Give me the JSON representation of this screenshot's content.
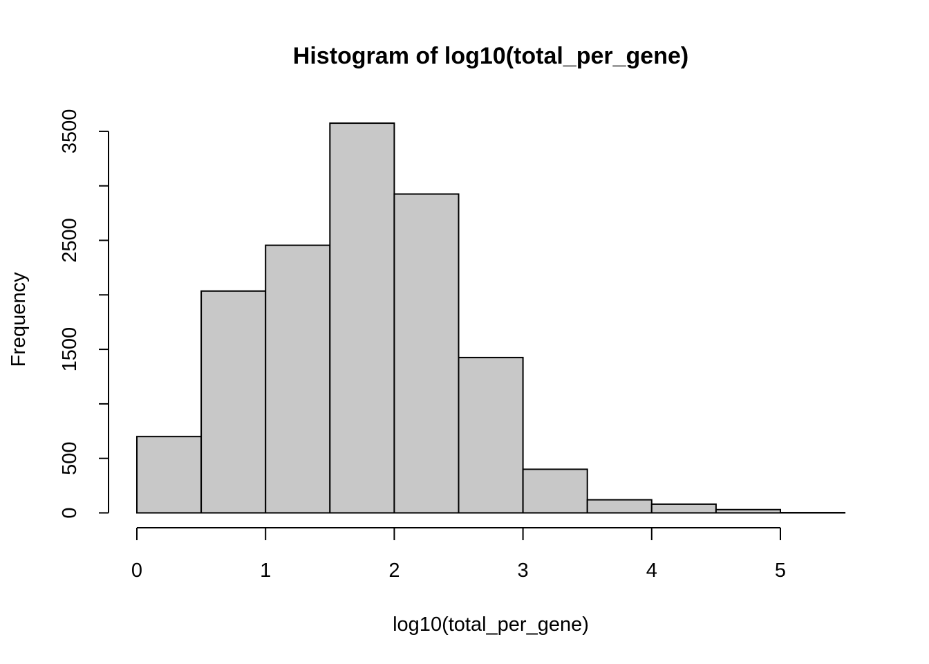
{
  "chart_data": {
    "type": "bar",
    "title": "Histogram of log10(total_per_gene)",
    "xlabel": "log10(total_per_gene)",
    "ylabel": "Frequency",
    "bar_fill": "#c8c8c8",
    "bar_stroke": "#000000",
    "bins": [
      {
        "x0": 0.0,
        "x1": 0.5,
        "count": 700
      },
      {
        "x0": 0.5,
        "x1": 1.0,
        "count": 2035
      },
      {
        "x0": 1.0,
        "x1": 1.5,
        "count": 2455
      },
      {
        "x0": 1.5,
        "x1": 2.0,
        "count": 3575
      },
      {
        "x0": 2.0,
        "x1": 2.5,
        "count": 2925
      },
      {
        "x0": 2.5,
        "x1": 3.0,
        "count": 1425
      },
      {
        "x0": 3.0,
        "x1": 3.5,
        "count": 400
      },
      {
        "x0": 3.5,
        "x1": 4.0,
        "count": 120
      },
      {
        "x0": 4.0,
        "x1": 4.5,
        "count": 80
      },
      {
        "x0": 4.5,
        "x1": 5.0,
        "count": 30
      },
      {
        "x0": 5.0,
        "x1": 5.5,
        "count": 3
      }
    ],
    "xlim": [
      0,
      5.5
    ],
    "ylim": [
      0,
      3500
    ],
    "x_ticks": [
      0,
      1,
      2,
      3,
      4,
      5
    ],
    "x_tick_labels": [
      "0",
      "1",
      "2",
      "3",
      "4",
      "5"
    ],
    "y_ticks": [
      0,
      500,
      1000,
      1500,
      2000,
      2500,
      3000,
      3500
    ],
    "y_tick_labels": [
      "0",
      "500",
      "",
      "1500",
      "",
      "2500",
      "",
      "3500"
    ],
    "grid": false
  }
}
